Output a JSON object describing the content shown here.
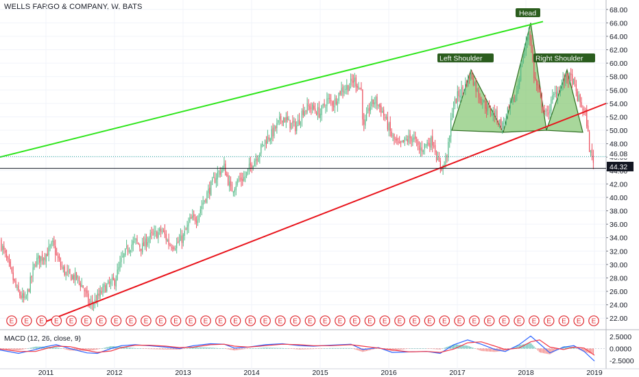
{
  "chart_title": "WELLS FARGO & COMPANY, W, BATS",
  "colors": {
    "up": "#53b987",
    "down": "#eb4d5c",
    "support": "#e8121a",
    "resistance": "#2de51a",
    "pattern_fill": "#8bc97a",
    "pattern_stroke": "#2b6b1e",
    "label_bg": "#2b5d1e",
    "earnings": "#e0282e",
    "macd": "#2962ff",
    "signal": "#f23645",
    "hist_pos": "#26a69a",
    "hist_neg": "#ef5350"
  },
  "price_labels": {
    "last": "46.08",
    "marked": "44.32"
  },
  "pattern_labels": {
    "left": "Left Shoulder",
    "head": "Head",
    "right": "Right Shoulder"
  },
  "earnings_letter": "E",
  "macd_title": "MACD (12, 26, close, 9)",
  "macd_ticks": [
    "2.5000",
    "0.0000",
    "-2.5000"
  ],
  "chart_data": {
    "type": "candlestick",
    "ylim": [
      21,
      69
    ],
    "y_ticks": [
      22,
      24,
      26,
      28,
      30,
      32,
      34,
      36,
      38,
      40,
      42,
      44,
      46,
      48,
      50,
      52,
      54,
      56,
      58,
      60,
      62,
      64,
      66,
      68
    ],
    "y_tick_labels": [
      "22.00",
      "24.00",
      "26.00",
      "28.00",
      "30.00",
      "32.00",
      "34.00",
      "36.00",
      "38.00",
      "40.00",
      "42.00",
      "44.00",
      "46.00",
      "48.00",
      "50.00",
      "52.00",
      "54.00",
      "56.00",
      "58.00",
      "60.00",
      "62.00",
      "64.00",
      "66.00",
      "68.00"
    ],
    "x_ticks": [
      "2011",
      "2012",
      "2013",
      "2014",
      "2015",
      "2016",
      "2017",
      "2018",
      "2019"
    ],
    "x_range": [
      2010.33,
      2019.17
    ],
    "close_path": [
      [
        2010.33,
        33.5
      ],
      [
        2010.45,
        30.0
      ],
      [
        2010.58,
        26.0
      ],
      [
        2010.7,
        24.5
      ],
      [
        2010.85,
        30.5
      ],
      [
        2011.0,
        31.5
      ],
      [
        2011.1,
        33.0
      ],
      [
        2011.2,
        30.0
      ],
      [
        2011.3,
        28.5
      ],
      [
        2011.45,
        28.0
      ],
      [
        2011.55,
        26.5
      ],
      [
        2011.63,
        24.0
      ],
      [
        2011.72,
        24.5
      ],
      [
        2011.85,
        26.5
      ],
      [
        2012.0,
        27.5
      ],
      [
        2012.1,
        30.5
      ],
      [
        2012.2,
        32.5
      ],
      [
        2012.3,
        33.5
      ],
      [
        2012.4,
        32.5
      ],
      [
        2012.5,
        34.0
      ],
      [
        2012.6,
        34.5
      ],
      [
        2012.7,
        35.0
      ],
      [
        2012.8,
        33.0
      ],
      [
        2012.9,
        33.0
      ],
      [
        2013.0,
        34.0
      ],
      [
        2013.1,
        36.5
      ],
      [
        2013.2,
        37.0
      ],
      [
        2013.3,
        39.5
      ],
      [
        2013.4,
        41.5
      ],
      [
        2013.5,
        43.5
      ],
      [
        2013.6,
        44.5
      ],
      [
        2013.7,
        41.0
      ],
      [
        2013.8,
        42.5
      ],
      [
        2013.9,
        43.0
      ],
      [
        2014.0,
        45.0
      ],
      [
        2014.1,
        46.5
      ],
      [
        2014.2,
        48.5
      ],
      [
        2014.3,
        49.5
      ],
      [
        2014.45,
        52.0
      ],
      [
        2014.55,
        51.0
      ],
      [
        2014.65,
        50.5
      ],
      [
        2014.75,
        53.0
      ],
      [
        2014.85,
        53.5
      ],
      [
        2015.0,
        52.5
      ],
      [
        2015.1,
        54.5
      ],
      [
        2015.2,
        54.0
      ],
      [
        2015.3,
        56.0
      ],
      [
        2015.4,
        56.5
      ],
      [
        2015.5,
        57.5
      ],
      [
        2015.6,
        56.0
      ],
      [
        2015.63,
        50.0
      ],
      [
        2015.72,
        53.5
      ],
      [
        2015.8,
        54.5
      ],
      [
        2015.9,
        53.0
      ],
      [
        2016.05,
        49.0
      ],
      [
        2016.15,
        47.5
      ],
      [
        2016.25,
        48.5
      ],
      [
        2016.35,
        49.0
      ],
      [
        2016.45,
        47.0
      ],
      [
        2016.55,
        48.0
      ],
      [
        2016.65,
        48.5
      ],
      [
        2016.72,
        45.0
      ],
      [
        2016.8,
        44.5
      ],
      [
        2016.88,
        48.0
      ],
      [
        2016.92,
        53.0
      ],
      [
        2017.0,
        55.0
      ],
      [
        2017.1,
        56.5
      ],
      [
        2017.2,
        58.5
      ],
      [
        2017.3,
        55.5
      ],
      [
        2017.45,
        53.0
      ],
      [
        2017.55,
        52.5
      ],
      [
        2017.65,
        50.5
      ],
      [
        2017.75,
        53.0
      ],
      [
        2017.85,
        55.0
      ],
      [
        2017.95,
        60.5
      ],
      [
        2018.05,
        65.0
      ],
      [
        2018.12,
        58.0
      ],
      [
        2018.2,
        55.0
      ],
      [
        2018.3,
        52.0
      ],
      [
        2018.4,
        55.0
      ],
      [
        2018.5,
        56.5
      ],
      [
        2018.6,
        58.0
      ],
      [
        2018.68,
        57.5
      ],
      [
        2018.75,
        55.0
      ],
      [
        2018.82,
        53.5
      ],
      [
        2018.88,
        52.0
      ],
      [
        2018.93,
        47.0
      ],
      [
        2018.98,
        45.5
      ],
      [
        2019.0,
        46.08
      ]
    ],
    "levels": {
      "last": 46.08,
      "marked": 44.32
    },
    "lines": {
      "resistance": [
        [
          2010.33,
          46.0
        ],
        [
          2018.25,
          66.2
        ]
      ],
      "support": [
        [
          2011.0,
          21.5
        ],
        [
          2019.17,
          54.0
        ]
      ]
    },
    "pattern": {
      "left_shoulder": [
        [
          2016.92,
          50.0
        ],
        [
          2017.2,
          59.0
        ],
        [
          2017.67,
          49.7
        ]
      ],
      "head": [
        [
          2017.67,
          49.7
        ],
        [
          2018.07,
          66.0
        ],
        [
          2018.3,
          50.0
        ]
      ],
      "right_shoulder": [
        [
          2018.3,
          50.0
        ],
        [
          2018.6,
          59.0
        ],
        [
          2018.83,
          49.7
        ]
      ]
    },
    "earnings_count": 40,
    "macd": {
      "ylim": [
        -3.5,
        3.5
      ],
      "ticks": [
        2.5,
        0.0,
        -2.5
      ],
      "points": [
        [
          2010.33,
          -0.3,
          -0.1
        ],
        [
          2010.6,
          -1.0,
          -0.6
        ],
        [
          2010.85,
          -0.2,
          -0.6
        ],
        [
          2011.0,
          0.4,
          0.0
        ],
        [
          2011.15,
          0.8,
          0.5
        ],
        [
          2011.35,
          0.0,
          0.4
        ],
        [
          2011.6,
          -0.9,
          -0.4
        ],
        [
          2011.75,
          -1.0,
          -0.8
        ],
        [
          2011.95,
          0.0,
          -0.5
        ],
        [
          2012.1,
          0.6,
          0.2
        ],
        [
          2012.3,
          0.8,
          0.7
        ],
        [
          2012.5,
          0.6,
          0.7
        ],
        [
          2012.75,
          0.3,
          0.5
        ],
        [
          2012.95,
          0.0,
          0.2
        ],
        [
          2013.15,
          0.6,
          0.3
        ],
        [
          2013.4,
          1.0,
          0.8
        ],
        [
          2013.6,
          0.9,
          0.9
        ],
        [
          2013.75,
          0.1,
          0.5
        ],
        [
          2013.95,
          0.3,
          0.3
        ],
        [
          2014.2,
          0.8,
          0.6
        ],
        [
          2014.45,
          1.0,
          0.9
        ],
        [
          2014.7,
          0.6,
          0.8
        ],
        [
          2014.9,
          0.5,
          0.6
        ],
        [
          2015.15,
          0.7,
          0.6
        ],
        [
          2015.45,
          0.9,
          0.8
        ],
        [
          2015.62,
          -0.2,
          0.5
        ],
        [
          2015.85,
          0.2,
          0.1
        ],
        [
          2016.05,
          -0.8,
          -0.3
        ],
        [
          2016.3,
          -0.7,
          -0.7
        ],
        [
          2016.55,
          -0.6,
          -0.6
        ],
        [
          2016.75,
          -1.0,
          -0.8
        ],
        [
          2016.95,
          0.8,
          -0.1
        ],
        [
          2017.15,
          1.8,
          1.2
        ],
        [
          2017.35,
          0.9,
          1.4
        ],
        [
          2017.55,
          -0.2,
          0.5
        ],
        [
          2017.7,
          -0.6,
          -0.2
        ],
        [
          2017.9,
          0.8,
          0.1
        ],
        [
          2018.07,
          2.6,
          1.4
        ],
        [
          2018.2,
          1.0,
          1.8
        ],
        [
          2018.35,
          -0.9,
          0.3
        ],
        [
          2018.55,
          0.3,
          -0.2
        ],
        [
          2018.7,
          0.6,
          0.3
        ],
        [
          2018.85,
          -0.6,
          0.1
        ],
        [
          2019.0,
          -2.6,
          -1.4
        ]
      ]
    }
  }
}
